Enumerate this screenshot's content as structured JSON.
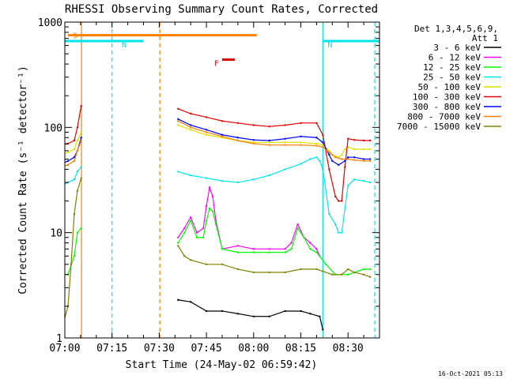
{
  "chart_data": {
    "type": "line",
    "title": "RHESSI Observing Summary Count Rates, Corrected",
    "xlabel": "Start Time (24-May-02 06:59:42)",
    "ylabel": "Corrected Count Rate (s⁻¹ detector⁻¹)",
    "x_unit": "minutes after 07:00 UT",
    "xlim": [
      0,
      100
    ],
    "ylim": [
      1,
      1000
    ],
    "yscale": "log",
    "x_ticks": [
      {
        "label": "07:00",
        "value": 0
      },
      {
        "label": "07:15",
        "value": 15
      },
      {
        "label": "07:30",
        "value": 30
      },
      {
        "label": "07:45",
        "value": 45
      },
      {
        "label": "08:00",
        "value": 60
      },
      {
        "label": "08:15",
        "value": 75
      },
      {
        "label": "08:30",
        "value": 90
      }
    ],
    "y_ticks": [
      {
        "label": "1",
        "value": 1
      },
      {
        "label": "10",
        "value": 10
      },
      {
        "label": "100",
        "value": 100
      },
      {
        "label": "1000",
        "value": 1000
      }
    ],
    "legend_header": [
      "Det 1,3,4,5,6,9,",
      "Att 1"
    ],
    "legend_position": "top-right, outside plot",
    "footer_timestamp": "16-Oct-2021 05:13",
    "flags": [
      {
        "label": "S",
        "color": "#ff7f00",
        "x_start": 1,
        "x_end": 61,
        "y": 750
      },
      {
        "label": "N",
        "color": "#00e5ee",
        "x_start": -1,
        "x_end": 25,
        "y": 660
      },
      {
        "label": "N",
        "color": "#00e5ee",
        "x_start": 82,
        "x_end": 100,
        "y": 660
      },
      {
        "label": "F",
        "color": "#e00000",
        "x_start": 50,
        "x_end": 54,
        "y": 440
      }
    ],
    "vertical_markers": [
      {
        "x": 5.3,
        "color": "#ff7f00",
        "style": "solid"
      },
      {
        "x": 30.2,
        "color": "#ff7f00",
        "style": "dashed"
      },
      {
        "x": 15,
        "color": "#00e5ee",
        "style": "dashed"
      },
      {
        "x": 82,
        "color": "#00e5ee",
        "style": "solid"
      },
      {
        "x": 98.5,
        "color": "#00e5ee",
        "style": "dashed"
      }
    ],
    "series": [
      {
        "name": "3 - 6 keV",
        "color": "#000000",
        "x": [
          36,
          40,
          45,
          50,
          55,
          60,
          65,
          70,
          75,
          78,
          81,
          82
        ],
        "y": [
          2.3,
          2.2,
          1.8,
          1.8,
          1.7,
          1.6,
          1.6,
          1.8,
          1.8,
          1.7,
          1.6,
          1.2
        ]
      },
      {
        "name": "6 - 12 keV",
        "color": "#ff00ff",
        "x": [
          36,
          38,
          40,
          42,
          44,
          45,
          46,
          47,
          48,
          50,
          55,
          60,
          65,
          70,
          72,
          74,
          76,
          78,
          80,
          81
        ],
        "y": [
          9,
          11,
          14,
          10,
          11,
          18,
          27,
          22,
          13,
          7,
          7.5,
          7,
          7,
          7,
          8,
          12,
          9,
          8,
          7,
          6
        ]
      },
      {
        "name": "12 - 25 keV",
        "color": "#00ff00",
        "x": [
          -1,
          1,
          3,
          4,
          5.2,
          36,
          38,
          40,
          42,
          44,
          45,
          46,
          47,
          48,
          50,
          55,
          60,
          65,
          70,
          72,
          74,
          76,
          78,
          80,
          83,
          86,
          90,
          95,
          97
        ],
        "y": [
          4,
          4,
          6,
          10,
          11,
          8,
          10,
          13,
          9,
          9,
          13,
          17,
          16,
          12,
          7,
          6.5,
          6.5,
          6.5,
          6.5,
          7,
          11,
          9,
          7,
          6.5,
          5,
          4,
          4,
          4.5,
          4.5
        ]
      },
      {
        "name": "25 - 50 keV",
        "color": "#00e5ee",
        "x": [
          -1,
          1,
          3,
          4,
          5.2,
          36,
          40,
          45,
          50,
          55,
          60,
          65,
          70,
          75,
          78,
          80,
          81,
          82,
          84,
          86,
          87,
          88,
          90,
          92,
          95,
          97
        ],
        "y": [
          28,
          30,
          32,
          38,
          42,
          38,
          35,
          33,
          31,
          30,
          32,
          35,
          40,
          45,
          50,
          52,
          48,
          40,
          15,
          12,
          10,
          10,
          28,
          32,
          31,
          30
        ]
      },
      {
        "name": "50 - 100 keV",
        "color": "#e0e000",
        "x": [
          -1,
          1,
          3,
          4,
          5.2,
          36,
          40,
          45,
          50,
          55,
          60,
          65,
          70,
          75,
          80,
          82,
          84,
          85,
          87,
          88,
          89,
          90,
          92,
          95,
          97
        ],
        "y": [
          55,
          58,
          62,
          75,
          90,
          105,
          95,
          85,
          80,
          75,
          72,
          72,
          72,
          72,
          70,
          68,
          60,
          55,
          52,
          55,
          62,
          65,
          62,
          62,
          62
        ]
      },
      {
        "name": "100 - 300 keV",
        "color": "#e00000",
        "x": [
          -1,
          1,
          3,
          4,
          5.2,
          36,
          40,
          45,
          50,
          55,
          60,
          65,
          70,
          75,
          80,
          82,
          84,
          86,
          87,
          88,
          89,
          90,
          92,
          95,
          97
        ],
        "y": [
          68,
          70,
          75,
          100,
          160,
          150,
          135,
          125,
          115,
          110,
          105,
          102,
          105,
          110,
          110,
          85,
          40,
          22,
          20,
          20,
          42,
          78,
          76,
          75,
          75
        ]
      },
      {
        "name": "300 - 800 keV",
        "color": "#0000ff",
        "x": [
          -1,
          1,
          3,
          4,
          5.2,
          36,
          40,
          45,
          50,
          55,
          60,
          65,
          70,
          75,
          80,
          82,
          84,
          85,
          87,
          89,
          90,
          92,
          95,
          97
        ],
        "y": [
          45,
          48,
          52,
          60,
          80,
          120,
          105,
          95,
          85,
          80,
          76,
          75,
          78,
          82,
          80,
          72,
          55,
          48,
          44,
          48,
          52,
          52,
          50,
          50
        ]
      },
      {
        "name": "800 - 7000 keV",
        "color": "#ff7f00",
        "x": [
          -1,
          1,
          3,
          4,
          5.2,
          36,
          40,
          45,
          50,
          55,
          60,
          65,
          70,
          75,
          80,
          82,
          84,
          86,
          88,
          90,
          92,
          95,
          97
        ],
        "y": [
          42,
          44,
          48,
          60,
          75,
          115,
          100,
          90,
          82,
          75,
          70,
          68,
          68,
          68,
          67,
          65,
          58,
          52,
          50,
          50,
          49,
          48,
          48
        ]
      },
      {
        "name": "7000 - 15000 keV",
        "color": "#808000",
        "x": [
          -1,
          1,
          2,
          3,
          4,
          5.2,
          36,
          38,
          40,
          45,
          50,
          55,
          60,
          65,
          70,
          75,
          80,
          82,
          85,
          88,
          90,
          92,
          95,
          97
        ],
        "y": [
          1.2,
          2,
          5,
          15,
          25,
          33,
          7.5,
          6,
          5.5,
          5,
          5,
          4.5,
          4.2,
          4.2,
          4.2,
          4.5,
          4.5,
          4.3,
          4,
          4,
          4.5,
          4.2,
          4,
          3.8
        ]
      }
    ]
  }
}
